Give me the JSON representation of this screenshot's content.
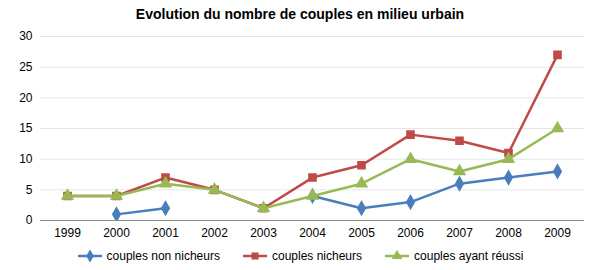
{
  "chart_data": {
    "type": "line",
    "title": "Evolution du nombre de couples en milieu urbain",
    "categories": [
      "1999",
      "2000",
      "2001",
      "2002",
      "2003",
      "2004",
      "2005",
      "2006",
      "2007",
      "2008",
      "2009"
    ],
    "series": [
      {
        "name": "couples non nicheurs",
        "color": "#4a7ebb",
        "marker": "diamond",
        "values": [
          null,
          1,
          2,
          null,
          null,
          4,
          2,
          3,
          6,
          7,
          8
        ]
      },
      {
        "name": "couples nicheurs",
        "color": "#be4b48",
        "marker": "square",
        "values": [
          4,
          4,
          7,
          5,
          2,
          7,
          9,
          14,
          13,
          11,
          27
        ]
      },
      {
        "name": "couples ayant réussi",
        "color": "#98b954",
        "marker": "triangle",
        "values": [
          4,
          4,
          6,
          5,
          2,
          4,
          6,
          10,
          8,
          10,
          15
        ]
      }
    ],
    "ylim": [
      0,
      30
    ],
    "yticks": [
      0,
      5,
      10,
      15,
      20,
      25,
      30
    ],
    "grid": true,
    "legend": "bottom"
  }
}
